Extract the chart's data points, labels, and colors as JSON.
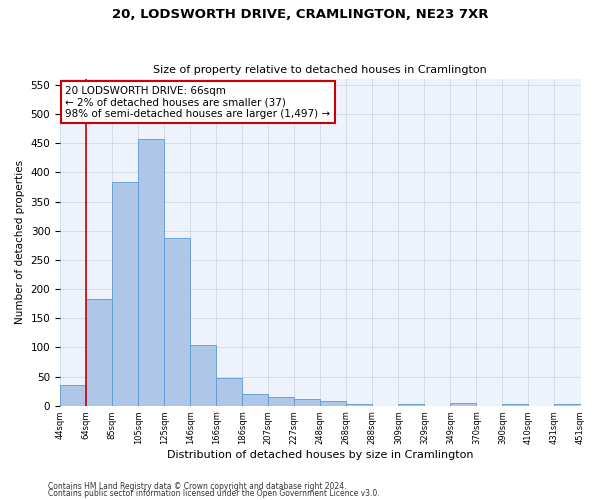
{
  "title1": "20, LODSWORTH DRIVE, CRAMLINGTON, NE23 7XR",
  "title2": "Size of property relative to detached houses in Cramlington",
  "xlabel": "Distribution of detached houses by size in Cramlington",
  "ylabel": "Number of detached properties",
  "footnote1": "Contains HM Land Registry data © Crown copyright and database right 2024.",
  "footnote2": "Contains public sector information licensed under the Open Government Licence v3.0.",
  "bar_values": [
    35,
    183,
    383,
    458,
    287,
    104,
    48,
    20,
    15,
    11,
    8,
    3,
    0,
    3,
    0,
    4,
    0,
    3,
    0,
    3
  ],
  "bin_labels": [
    "44sqm",
    "64sqm",
    "85sqm",
    "105sqm",
    "125sqm",
    "146sqm",
    "166sqm",
    "186sqm",
    "207sqm",
    "227sqm",
    "248sqm",
    "268sqm",
    "288sqm",
    "309sqm",
    "329sqm",
    "349sqm",
    "370sqm",
    "390sqm",
    "410sqm",
    "431sqm",
    "451sqm"
  ],
  "bar_color": "#aec6e8",
  "bar_edge_color": "#5b9bd5",
  "grid_color": "#d0d8e8",
  "vline_color": "#cc0000",
  "annotation_text": "20 LODSWORTH DRIVE: 66sqm\n← 2% of detached houses are smaller (37)\n98% of semi-detached houses are larger (1,497) →",
  "annotation_box_color": "#cc0000",
  "ylim": [
    0,
    560
  ],
  "yticks": [
    0,
    50,
    100,
    150,
    200,
    250,
    300,
    350,
    400,
    450,
    500,
    550
  ],
  "background_color": "#ffffff",
  "plot_bg_color": "#eef2fa"
}
